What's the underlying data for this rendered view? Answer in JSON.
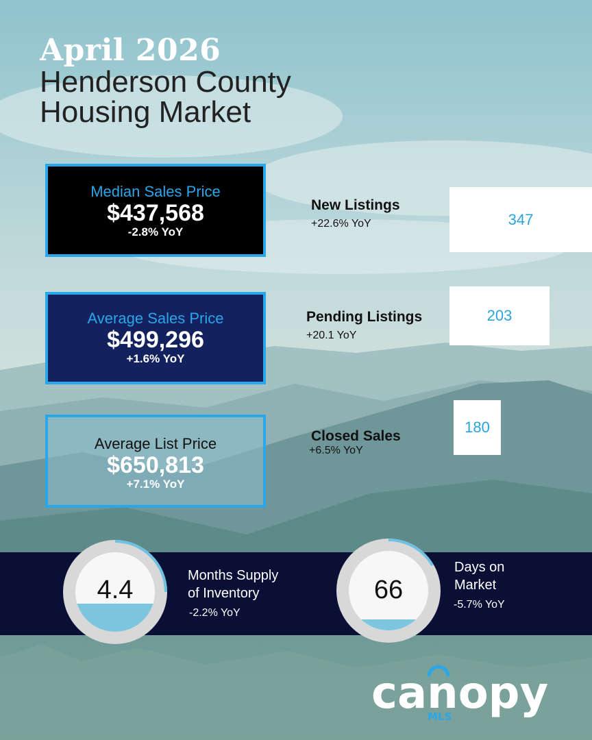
{
  "header": {
    "month": "April 2026",
    "title_line1": "Henderson County",
    "title_line2": "Housing Market"
  },
  "median_sales": {
    "label": "Median Sales Price",
    "value": "$437,568",
    "yoy": "-2.8% YoY"
  },
  "avg_sales": {
    "label": "Average Sales Price",
    "value": "$499,296",
    "yoy": "+1.6% YoY"
  },
  "avg_list": {
    "label": "Average List Price",
    "value": "$650,813",
    "yoy": "+7.1% YoY"
  },
  "new_listings": {
    "label": "New Listings",
    "yoy": "+22.6% YoY",
    "value": "347"
  },
  "pending_listings": {
    "label": "Pending Listings",
    "yoy": "+20.1 YoY",
    "value": "203"
  },
  "closed_sales": {
    "label": "Closed Sales",
    "yoy": "+6.5% YoY",
    "value": "180"
  },
  "months_supply": {
    "value": "4.4",
    "label_line1": "Months Supply",
    "label_line2": "of Inventory",
    "yoy": "-2.2% YoY"
  },
  "days_on_market": {
    "value": "66",
    "label_line1": "Days on",
    "label_line2": "Market",
    "yoy": "-5.7% YoY"
  },
  "logo": {
    "word": "canopy",
    "sub": "MLS"
  },
  "colors": {
    "accent": "#2aa6ea",
    "navy": "#13225f",
    "band": "#0a0f35",
    "number": "#29a3dd"
  }
}
